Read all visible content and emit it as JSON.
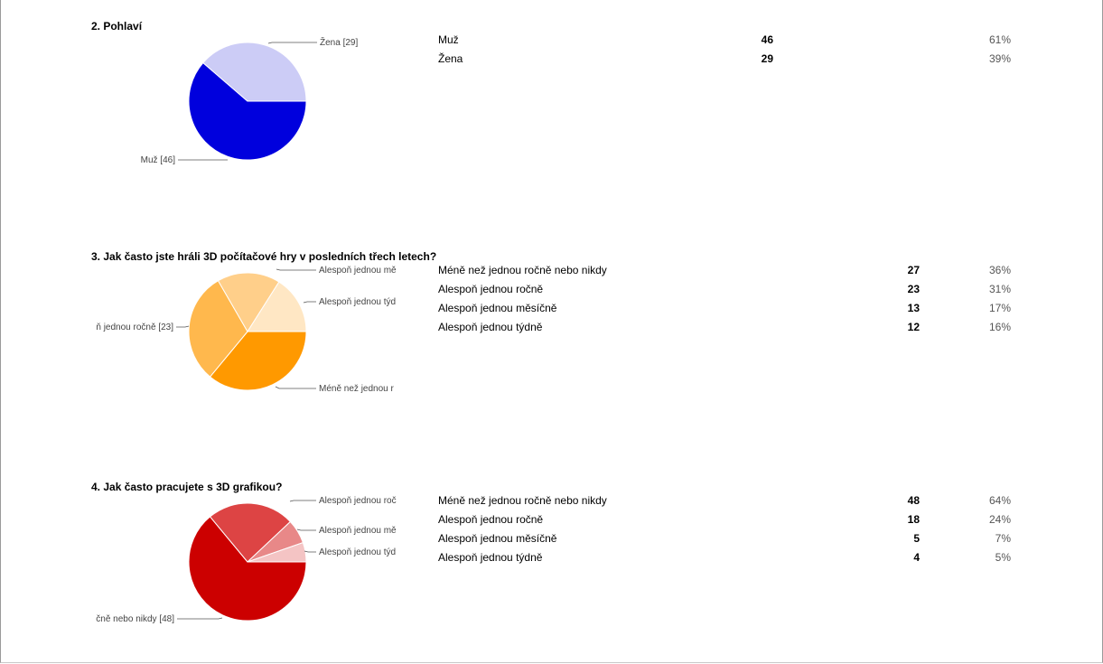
{
  "sections": [
    {
      "title": "2. Pohlaví",
      "rows": [
        {
          "label": "Muž",
          "count": "46",
          "percent": "61%"
        },
        {
          "label": "Žena",
          "count": "29",
          "percent": "39%"
        }
      ],
      "pie_labels": [
        "Žena [29]",
        "Muž [46]"
      ]
    },
    {
      "title": "3. Jak často jste hráli 3D počítačové hry v posledních třech letech?",
      "rows": [
        {
          "label": "Méně než jednou ročně nebo nikdy",
          "count": "27",
          "percent": "36%"
        },
        {
          "label": "Alespoň jednou ročně",
          "count": "23",
          "percent": "31%"
        },
        {
          "label": "Alespoň jednou měsíčně",
          "count": "13",
          "percent": "17%"
        },
        {
          "label": "Alespoň jednou týdně",
          "count": "12",
          "percent": "16%"
        }
      ],
      "pie_labels": [
        "Alespoň jednou mě",
        "Alespoň jednou týd",
        "ň jednou ročně [23]",
        "Méně než jednou r"
      ]
    },
    {
      "title": "4. Jak často pracujete s 3D grafikou?",
      "rows": [
        {
          "label": "Méně než jednou ročně nebo nikdy",
          "count": "48",
          "percent": "64%"
        },
        {
          "label": "Alespoň jednou ročně",
          "count": "18",
          "percent": "24%"
        },
        {
          "label": "Alespoň jednou měsíčně",
          "count": "5",
          "percent": "7%"
        },
        {
          "label": "Alespoň jednou týdně",
          "count": "4",
          "percent": "5%"
        }
      ],
      "pie_labels": [
        "Alespoň jednou roč",
        "Alespoň jednou mě",
        "Alespoň jednou týd",
        "čně nebo nikdy [48]"
      ]
    }
  ],
  "chart_data": [
    {
      "type": "pie",
      "title": "2. Pohlaví",
      "categories": [
        "Muž",
        "Žena"
      ],
      "values": [
        46,
        29
      ],
      "colors": [
        "#0000dd",
        "#ccccf6"
      ]
    },
    {
      "type": "pie",
      "title": "3. Jak často jste hráli 3D počítačové hry v posledních třech letech?",
      "categories": [
        "Méně než jednou ročně nebo nikdy",
        "Alespoň jednou ročně",
        "Alespoň jednou měsíčně",
        "Alespoň jednou týdně"
      ],
      "values": [
        27,
        23,
        13,
        12
      ],
      "colors": [
        "#ff9900",
        "#ffb84d",
        "#ffcf8a",
        "#ffe7c4"
      ]
    },
    {
      "type": "pie",
      "title": "4. Jak často pracujete s 3D grafikou?",
      "categories": [
        "Méně než jednou ročně nebo nikdy",
        "Alespoň jednou ročně",
        "Alespoň jednou měsíčně",
        "Alespoň jednou týdně"
      ],
      "values": [
        48,
        18,
        5,
        4
      ],
      "colors": [
        "#cc0000",
        "#dd4444",
        "#e88888",
        "#f4c4c4"
      ]
    }
  ]
}
